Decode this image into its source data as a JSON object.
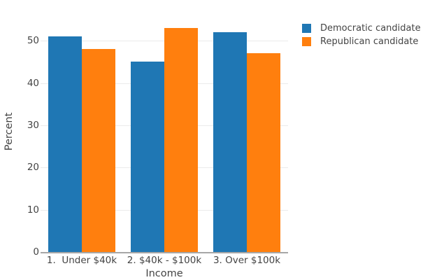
{
  "chart_data": {
    "type": "bar",
    "title": "",
    "categories": [
      "1.  Under $40k",
      "2. $40k - $100k",
      "3. Over $100k"
    ],
    "series": [
      {
        "name": "Democratic candidate",
        "color": "#1f77b4",
        "values": [
          51,
          45,
          52
        ]
      },
      {
        "name": "Republican candidate",
        "color": "#ff7f0e",
        "values": [
          48,
          53,
          47
        ]
      }
    ],
    "xlabel": "Income",
    "ylabel": "Percent",
    "ylim": [
      0,
      56
    ],
    "yticks": [
      0,
      10,
      20,
      30,
      40,
      50
    ],
    "grid": true,
    "bar_group_fraction": 0.81,
    "legend_position": "top-right-outside",
    "colors": {
      "grid": "#ebebeb",
      "axis_line": "#a7a7a7",
      "text": "#444444",
      "background": "#ffffff"
    }
  }
}
